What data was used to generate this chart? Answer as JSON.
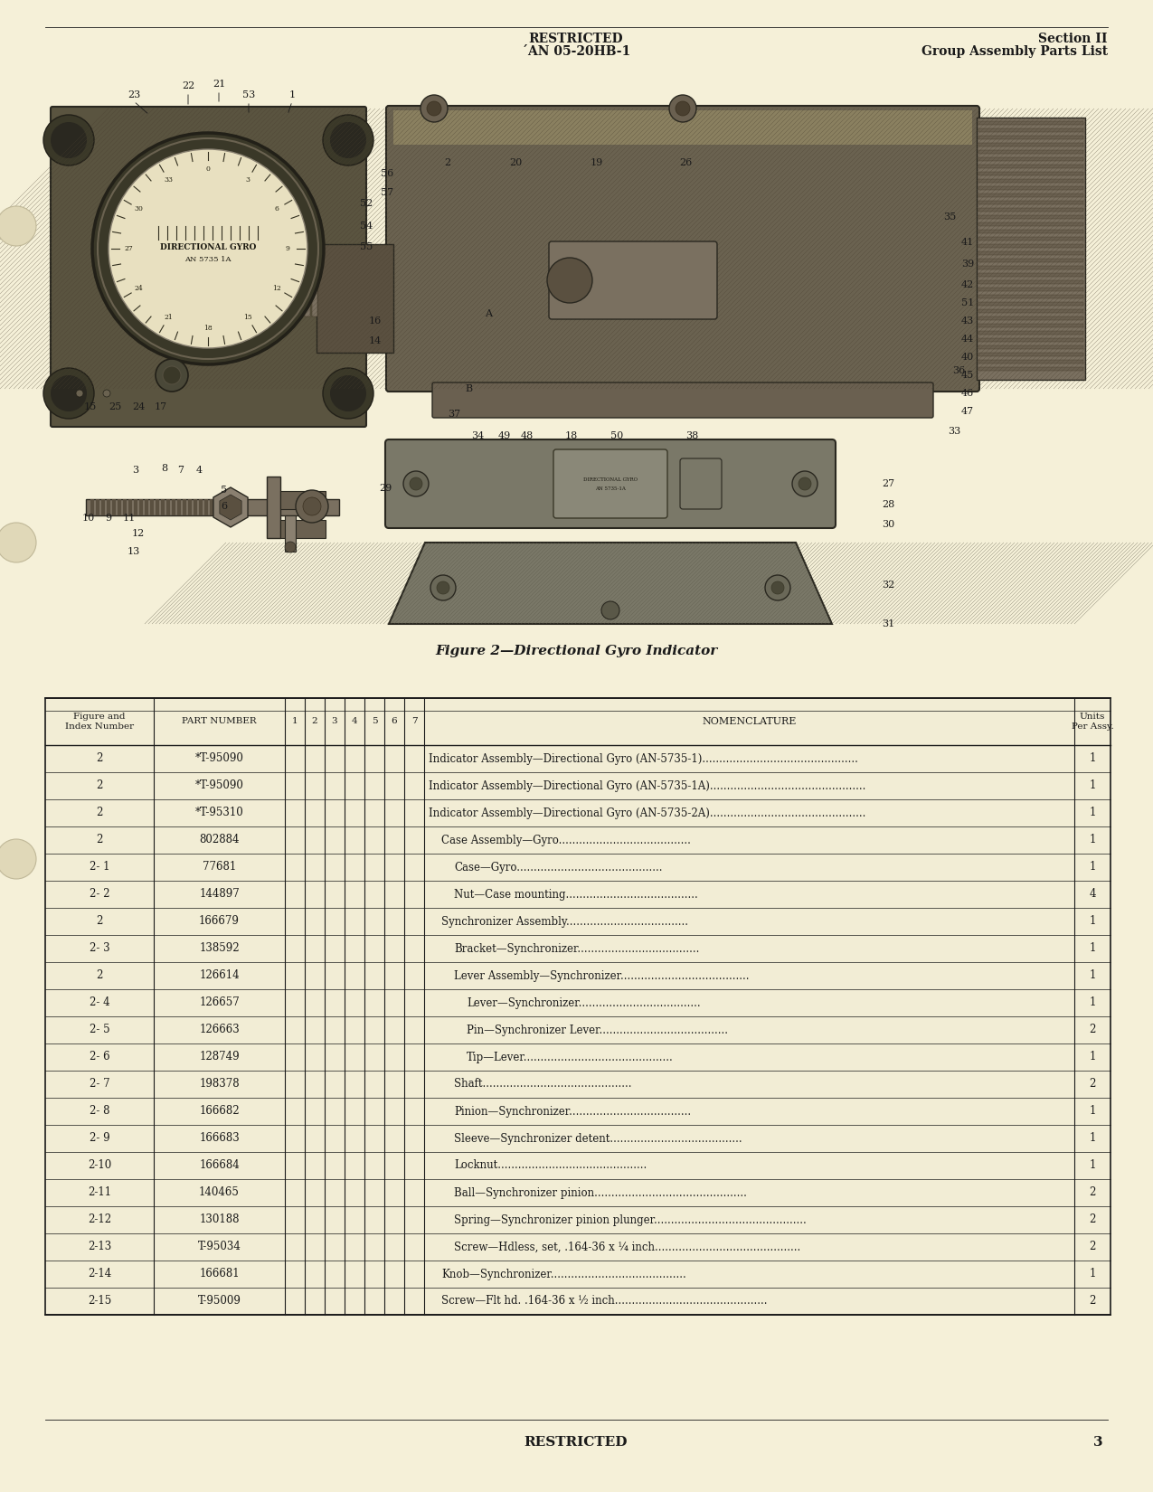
{
  "page_bg": "#f5f0d8",
  "header_restricted": "RESTRICTED",
  "header_doc": "´AN 05-20HB-1",
  "header_section": "Section II",
  "header_group": "Group Assembly Parts List",
  "figure_caption": "Figure 2—Directional Gyro Indicator",
  "footer_restricted": "RESTRICTED",
  "footer_page": "3",
  "table_rows": [
    [
      "2",
      "*T-95090",
      "Indicator Assembly—Directional Gyro (AN-5735-1).",
      0,
      "1"
    ],
    [
      "2",
      "*T-95090",
      "Indicator Assembly—Directional Gyro (AN-5735-1A).",
      0,
      "1"
    ],
    [
      "2",
      "*T-95310",
      "Indicator Assembly—Directional Gyro (AN-5735-2A).",
      0,
      "1"
    ],
    [
      "2",
      "802884",
      "Case Assembly—Gyro",
      1,
      "1"
    ],
    [
      "2- 1",
      "77681",
      "Case—Gyro",
      2,
      "1"
    ],
    [
      "2- 2",
      "144897",
      "Nut—Case mounting",
      2,
      "4"
    ],
    [
      "2",
      "166679",
      "Synchronizer Assembly",
      1,
      "1"
    ],
    [
      "2- 3",
      "138592",
      "Bracket—Synchronizer",
      2,
      "1"
    ],
    [
      "2",
      "126614",
      "Lever Assembly—Synchronizer",
      2,
      "1"
    ],
    [
      "2- 4",
      "126657",
      "Lever—Synchronizer",
      3,
      "1"
    ],
    [
      "2- 5",
      "126663",
      "Pin—Synchronizer Lever",
      3,
      "2"
    ],
    [
      "2- 6",
      "128749",
      "Tip—Lever",
      3,
      "1"
    ],
    [
      "2- 7",
      "198378",
      "Shaft",
      2,
      "2"
    ],
    [
      "2- 8",
      "166682",
      "Pinion—Synchronizer",
      2,
      "1"
    ],
    [
      "2- 9",
      "166683",
      "Sleeve—Synchronizer detent",
      2,
      "1"
    ],
    [
      "2-10",
      "166684",
      "Locknut",
      2,
      "1"
    ],
    [
      "2-11",
      "140465",
      "Ball—Synchronizer pinion",
      2,
      "2"
    ],
    [
      "2-12",
      "130188",
      "Spring—Synchronizer pinion plunger",
      2,
      "2"
    ],
    [
      "2-13",
      "T-95034",
      "Screw—Hdless, set, .164-36 x ¼ inch",
      2,
      "2"
    ],
    [
      "2-14",
      "166681",
      "Knob—Synchronizer",
      1,
      "1"
    ],
    [
      "2-15",
      "T-95009",
      "Screw—Flt hd. .164-36 x ½ inch",
      1,
      "2"
    ]
  ],
  "dot_leaders": [
    ".............................................",
    ".............................................",
    ".............................................",
    ".......................................",
    "...........................................",
    ".......................................",
    "....................................",
    "....................................",
    "......................................",
    "....................................",
    "......................................",
    "............................................",
    "............................................",
    "....................................",
    ".......................................",
    "............................................",
    ".............................................",
    ".............................................",
    "...........................................",
    "........................................",
    "............................................."
  ]
}
